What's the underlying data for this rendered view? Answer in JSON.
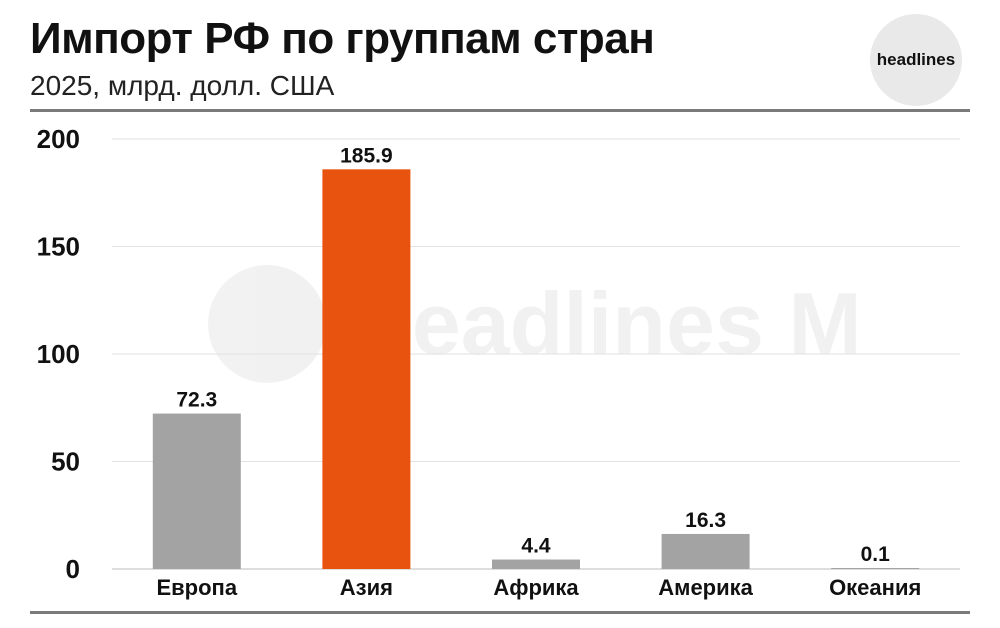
{
  "header": {
    "title": "Импорт РФ по группам стран",
    "subtitle": "2025, млрд. долл. США",
    "brand": "headlines"
  },
  "watermark_text": "headlines M",
  "chart_data": {
    "type": "bar",
    "title": "Импорт РФ по группам стран",
    "subtitle": "2025, млрд. долл. США",
    "categories": [
      "Европа",
      "Азия",
      "Африка",
      "Америка",
      "Океания"
    ],
    "values": [
      72.3,
      185.9,
      4.4,
      16.3,
      0.1
    ],
    "value_labels": [
      "72.3",
      "185.9",
      "4.4",
      "16.3",
      "0.1"
    ],
    "bar_colors": [
      "#a3a3a3",
      "#e8540f",
      "#a3a3a3",
      "#a3a3a3",
      "#a3a3a3"
    ],
    "yticks": [
      0,
      50,
      100,
      150,
      200
    ],
    "ylim": [
      0,
      200
    ],
    "grid": true,
    "legend": "none"
  }
}
